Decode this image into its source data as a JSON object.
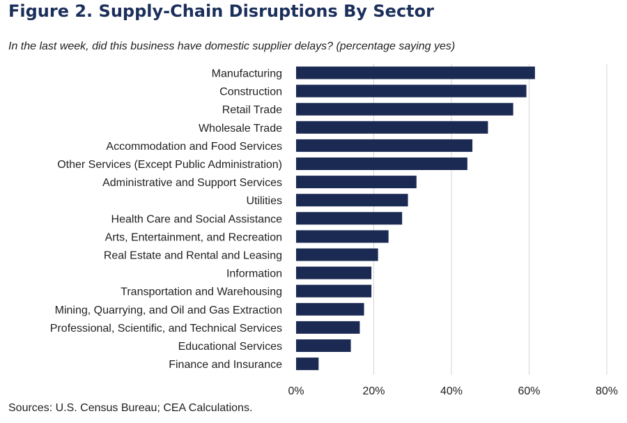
{
  "figure": {
    "title": "Figure 2. Supply-Chain Disruptions By Sector",
    "subtitle": "In the last week, did this business have domestic supplier delays? (percentage saying yes)",
    "source": "Sources: U.S. Census Bureau; CEA Calculations."
  },
  "colors": {
    "bar": "#1b2a52",
    "grid": "#d4d4d4",
    "title": "#1b2f5b"
  },
  "chart_data": {
    "type": "bar",
    "orientation": "horizontal",
    "title": "Figure 2. Supply-Chain Disruptions By Sector",
    "subtitle": "In the last week, did this business have domestic supplier delays? (percentage saying yes)",
    "categories": [
      "Manufacturing",
      "Construction",
      "Retail Trade",
      "Wholesale Trade",
      "Accommodation and Food Services",
      "Other Services (Except Public Administration)",
      "Administrative and Support Services",
      "Utilities",
      "Health Care and Social Assistance",
      "Arts, Entertainment, and Recreation",
      "Real Estate and Rental and Leasing",
      "Information",
      "Transportation and Warehousing",
      "Mining, Quarrying, and Oil and Gas Extraction",
      "Professional, Scientific, and Technical Services",
      "Educational Services",
      "Finance and Insurance"
    ],
    "values": [
      61.5,
      59.3,
      55.9,
      49.4,
      45.4,
      44.1,
      31.0,
      28.8,
      27.3,
      23.8,
      21.1,
      19.4,
      19.4,
      17.5,
      16.4,
      14.1,
      5.8
    ],
    "unit": "%",
    "xlim": [
      0,
      80
    ],
    "xticks": [
      0,
      20,
      40,
      60,
      80
    ],
    "xtick_labels": [
      "0%",
      "20%",
      "40%",
      "60%",
      "80%"
    ],
    "xlabel": "",
    "ylabel": "",
    "grid": "vertical",
    "legend": "none"
  }
}
